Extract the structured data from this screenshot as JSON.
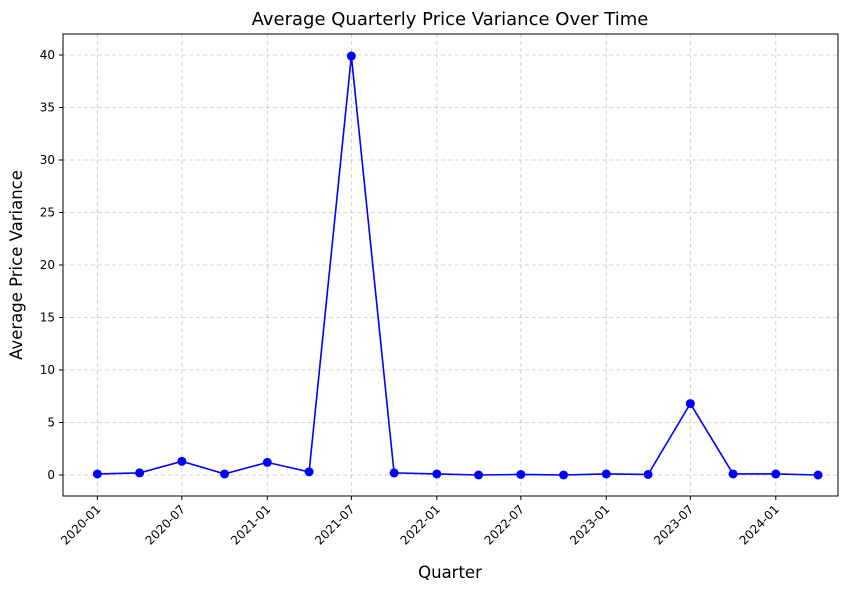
{
  "chart_data": {
    "type": "line",
    "title": "Average Quarterly Price Variance Over Time",
    "xlabel": "Quarter",
    "ylabel": "Average Price Variance",
    "x": [
      "2020-01-01",
      "2020-04-01",
      "2020-07-01",
      "2020-10-01",
      "2021-01-01",
      "2021-04-01",
      "2021-07-01",
      "2021-10-01",
      "2022-01-01",
      "2022-04-01",
      "2022-07-01",
      "2022-10-01",
      "2023-01-01",
      "2023-04-01",
      "2023-07-01",
      "2023-10-01",
      "2024-01-01",
      "2024-04-01"
    ],
    "series": [
      {
        "values": [
          0.1,
          0.2,
          1.3,
          0.1,
          1.2,
          0.3,
          39.9,
          0.2,
          0.1,
          0.0,
          0.05,
          0.0,
          0.1,
          0.05,
          6.8,
          0.1,
          0.1,
          0.0
        ],
        "color": "#0000ff",
        "marker": "circle"
      }
    ],
    "x_ticks": [
      "2020-01",
      "2020-07",
      "2021-01",
      "2021-07",
      "2022-01",
      "2022-07",
      "2023-01",
      "2023-07",
      "2024-01"
    ],
    "y_ticks": [
      0,
      5,
      10,
      15,
      20,
      25,
      30,
      35,
      40
    ],
    "xlim": [
      "2019-10-19",
      "2024-05-14"
    ],
    "ylim": [
      -2,
      42
    ],
    "grid": true,
    "legend": "none"
  }
}
